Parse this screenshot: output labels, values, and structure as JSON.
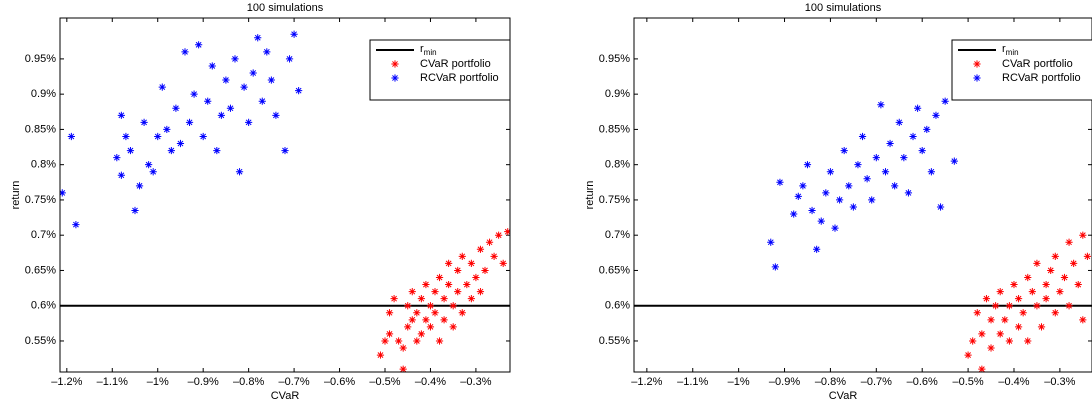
{
  "chart_data": [
    {
      "type": "scatter",
      "title": "100 simulations",
      "xlabel": "CVaR",
      "ylabel": "return",
      "xlim": [
        -1.215,
        -0.225
      ],
      "ylim": [
        0.506,
        1.008
      ],
      "xticks": [
        {
          "value": -1.2,
          "label": "–1.2%"
        },
        {
          "value": -1.1,
          "label": "–1.1%"
        },
        {
          "value": -1.0,
          "label": "–1%"
        },
        {
          "value": -0.9,
          "label": "–0.9%"
        },
        {
          "value": -0.8,
          "label": "–0.8%"
        },
        {
          "value": -0.7,
          "label": "–0.7%"
        },
        {
          "value": -0.6,
          "label": "–0.6%"
        },
        {
          "value": -0.5,
          "label": "–0.5%"
        },
        {
          "value": -0.4,
          "label": "–0.4%"
        },
        {
          "value": -0.3,
          "label": "–0.3%"
        }
      ],
      "yticks": [
        {
          "value": 0.55,
          "label": "0.55%"
        },
        {
          "value": 0.6,
          "label": "0.6%"
        },
        {
          "value": 0.65,
          "label": "0.65%"
        },
        {
          "value": 0.7,
          "label": "0.7%"
        },
        {
          "value": 0.75,
          "label": "0.75%"
        },
        {
          "value": 0.8,
          "label": "0.8%"
        },
        {
          "value": 0.85,
          "label": "0.85%"
        },
        {
          "value": 0.9,
          "label": "0.9%"
        },
        {
          "value": 0.95,
          "label": "0.95%"
        }
      ],
      "legend": "upper right",
      "reference_line": {
        "name": "r",
        "subscript": "min",
        "value": 0.6,
        "color": "#000000"
      },
      "series": [
        {
          "name": "CVaR portfolio",
          "color": "#ff0000",
          "x": [
            -0.51,
            -0.5,
            -0.49,
            -0.49,
            -0.48,
            -0.47,
            -0.46,
            -0.46,
            -0.45,
            -0.45,
            -0.44,
            -0.44,
            -0.43,
            -0.43,
            -0.42,
            -0.42,
            -0.41,
            -0.41,
            -0.4,
            -0.4,
            -0.39,
            -0.39,
            -0.38,
            -0.38,
            -0.37,
            -0.37,
            -0.36,
            -0.36,
            -0.35,
            -0.35,
            -0.34,
            -0.34,
            -0.33,
            -0.33,
            -0.32,
            -0.31,
            -0.31,
            -0.3,
            -0.29,
            -0.29,
            -0.28,
            -0.27,
            -0.26,
            -0.25,
            -0.24,
            -0.23
          ],
          "y": [
            0.53,
            0.55,
            0.56,
            0.59,
            0.61,
            0.55,
            0.51,
            0.54,
            0.57,
            0.6,
            0.58,
            0.62,
            0.55,
            0.59,
            0.56,
            0.61,
            0.58,
            0.63,
            0.6,
            0.57,
            0.62,
            0.59,
            0.64,
            0.55,
            0.61,
            0.58,
            0.63,
            0.66,
            0.6,
            0.57,
            0.62,
            0.65,
            0.59,
            0.67,
            0.63,
            0.61,
            0.66,
            0.64,
            0.68,
            0.62,
            0.65,
            0.69,
            0.67,
            0.7,
            0.66,
            0.705
          ]
        },
        {
          "name": "RCVaR portfolio",
          "color": "#0000ff",
          "x": [
            -1.21,
            -1.19,
            -1.18,
            -1.09,
            -1.08,
            -1.08,
            -1.07,
            -1.06,
            -1.05,
            -1.04,
            -1.03,
            -1.02,
            -1.01,
            -1.0,
            -0.99,
            -0.98,
            -0.97,
            -0.96,
            -0.95,
            -0.94,
            -0.93,
            -0.92,
            -0.91,
            -0.9,
            -0.89,
            -0.88,
            -0.87,
            -0.86,
            -0.85,
            -0.84,
            -0.83,
            -0.82,
            -0.81,
            -0.8,
            -0.79,
            -0.78,
            -0.77,
            -0.76,
            -0.75,
            -0.74,
            -0.72,
            -0.71,
            -0.7,
            -0.69
          ],
          "y": [
            0.76,
            0.84,
            0.715,
            0.81,
            0.87,
            0.785,
            0.84,
            0.82,
            0.735,
            0.77,
            0.86,
            0.8,
            0.79,
            0.84,
            0.91,
            0.85,
            0.82,
            0.88,
            0.83,
            0.96,
            0.86,
            0.9,
            0.97,
            0.84,
            0.89,
            0.94,
            0.82,
            0.87,
            0.92,
            0.88,
            0.95,
            0.79,
            0.91,
            0.86,
            0.93,
            0.98,
            0.89,
            0.96,
            0.92,
            0.87,
            0.82,
            0.95,
            0.985,
            0.905
          ]
        }
      ]
    },
    {
      "type": "scatter",
      "title": "100 simulations",
      "xlabel": "CVaR",
      "ylabel": "return",
      "xlim": [
        -1.228,
        -0.23
      ],
      "ylim": [
        0.506,
        1.008
      ],
      "xticks": [
        {
          "value": -1.2,
          "label": "–1.2%"
        },
        {
          "value": -1.1,
          "label": "–1.1%"
        },
        {
          "value": -1.0,
          "label": "–1%"
        },
        {
          "value": -0.9,
          "label": "–0.9%"
        },
        {
          "value": -0.8,
          "label": "–0.8%"
        },
        {
          "value": -0.7,
          "label": "–0.7%"
        },
        {
          "value": -0.6,
          "label": "–0.6%"
        },
        {
          "value": -0.5,
          "label": "–0.5%"
        },
        {
          "value": -0.4,
          "label": "–0.4%"
        },
        {
          "value": -0.3,
          "label": "–0.3%"
        }
      ],
      "yticks": [
        {
          "value": 0.55,
          "label": "0.55%"
        },
        {
          "value": 0.6,
          "label": "0.6%"
        },
        {
          "value": 0.65,
          "label": "0.65%"
        },
        {
          "value": 0.7,
          "label": "0.7%"
        },
        {
          "value": 0.75,
          "label": "0.75%"
        },
        {
          "value": 0.8,
          "label": "0.8%"
        },
        {
          "value": 0.85,
          "label": "0.85%"
        },
        {
          "value": 0.9,
          "label": "0.9%"
        },
        {
          "value": 0.95,
          "label": "0.95%"
        }
      ],
      "legend": "upper right",
      "reference_line": {
        "name": "r",
        "subscript": "min",
        "value": 0.6,
        "color": "#000000"
      },
      "series": [
        {
          "name": "CVaR portfolio",
          "color": "#ff0000",
          "x": [
            -0.5,
            -0.49,
            -0.48,
            -0.47,
            -0.47,
            -0.46,
            -0.45,
            -0.45,
            -0.44,
            -0.43,
            -0.43,
            -0.42,
            -0.41,
            -0.41,
            -0.4,
            -0.39,
            -0.39,
            -0.38,
            -0.37,
            -0.37,
            -0.36,
            -0.35,
            -0.35,
            -0.34,
            -0.33,
            -0.33,
            -0.32,
            -0.31,
            -0.31,
            -0.3,
            -0.29,
            -0.28,
            -0.28,
            -0.27,
            -0.26,
            -0.25,
            -0.25,
            -0.24
          ],
          "y": [
            0.53,
            0.55,
            0.59,
            0.51,
            0.56,
            0.61,
            0.54,
            0.58,
            0.6,
            0.56,
            0.62,
            0.58,
            0.55,
            0.6,
            0.63,
            0.57,
            0.61,
            0.59,
            0.64,
            0.55,
            0.62,
            0.6,
            0.66,
            0.57,
            0.63,
            0.61,
            0.65,
            0.59,
            0.67,
            0.62,
            0.64,
            0.69,
            0.6,
            0.66,
            0.63,
            0.7,
            0.58,
            0.67
          ]
        },
        {
          "name": "RCVaR portfolio",
          "color": "#0000ff",
          "x": [
            -0.93,
            -0.92,
            -0.91,
            -0.88,
            -0.87,
            -0.86,
            -0.85,
            -0.84,
            -0.83,
            -0.82,
            -0.81,
            -0.8,
            -0.79,
            -0.78,
            -0.77,
            -0.76,
            -0.75,
            -0.74,
            -0.73,
            -0.72,
            -0.71,
            -0.7,
            -0.69,
            -0.68,
            -0.67,
            -0.66,
            -0.65,
            -0.64,
            -0.63,
            -0.62,
            -0.61,
            -0.6,
            -0.59,
            -0.58,
            -0.57,
            -0.56,
            -0.55,
            -0.53
          ],
          "y": [
            0.69,
            0.655,
            0.775,
            0.73,
            0.755,
            0.77,
            0.8,
            0.735,
            0.68,
            0.72,
            0.76,
            0.79,
            0.71,
            0.75,
            0.82,
            0.77,
            0.74,
            0.8,
            0.84,
            0.78,
            0.75,
            0.81,
            0.885,
            0.79,
            0.83,
            0.77,
            0.86,
            0.81,
            0.76,
            0.84,
            0.88,
            0.82,
            0.85,
            0.79,
            0.87,
            0.74,
            0.89,
            0.805
          ]
        }
      ]
    }
  ]
}
